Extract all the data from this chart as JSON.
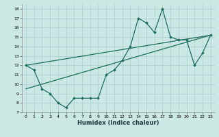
{
  "xlabel": "Humidex (Indice chaleur)",
  "bg_color": "#cce8e4",
  "grid_color": "#aacfcb",
  "line_color": "#1a6b60",
  "xlim": [
    -0.5,
    23.5
  ],
  "ylim": [
    7,
    18.5
  ],
  "xticks": [
    0,
    1,
    2,
    3,
    4,
    5,
    6,
    7,
    8,
    9,
    10,
    11,
    12,
    13,
    14,
    15,
    16,
    17,
    18,
    19,
    20,
    21,
    22,
    23
  ],
  "yticks": [
    7,
    8,
    9,
    10,
    11,
    12,
    13,
    14,
    15,
    16,
    17,
    18
  ],
  "series1_x": [
    0,
    1,
    2,
    3,
    4,
    5,
    6,
    7,
    8,
    9,
    10,
    11,
    12,
    13,
    14,
    15,
    16,
    17,
    18,
    19,
    20,
    21,
    22,
    23
  ],
  "series1_y": [
    12,
    11.5,
    9.5,
    9.0,
    8.0,
    7.5,
    8.5,
    8.5,
    8.5,
    8.5,
    11.0,
    11.5,
    12.5,
    14.0,
    17.0,
    16.5,
    15.5,
    18.0,
    15.0,
    14.7,
    14.7,
    12.0,
    13.3,
    15.2
  ],
  "series2_x": [
    0,
    23
  ],
  "series2_y": [
    12.0,
    15.2
  ],
  "series3_x": [
    0,
    23
  ],
  "series3_y": [
    9.5,
    15.2
  ],
  "marker": "D",
  "markersize": 2,
  "linewidth": 0.9,
  "tick_fontsize": 4.5,
  "xlabel_fontsize": 6.0
}
